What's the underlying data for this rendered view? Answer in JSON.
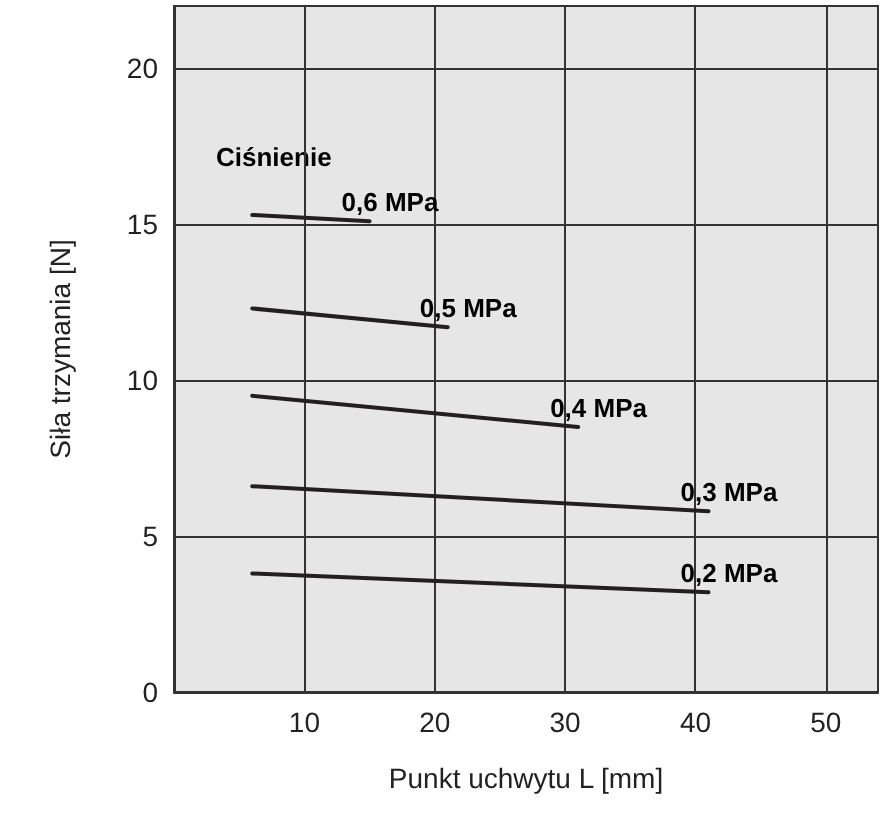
{
  "chart_data": {
    "type": "line",
    "xlabel": "Punkt uchwytu L [mm]",
    "ylabel": "Siła trzymania [N]",
    "annotations": [
      "Ciśnienie"
    ],
    "xlim": [
      0,
      54
    ],
    "xticks": [
      10,
      20,
      30,
      40,
      50
    ],
    "ylim": [
      0,
      22
    ],
    "yticks": [
      0,
      5,
      10,
      15,
      20
    ],
    "grid": true,
    "legend": false,
    "marker": "none",
    "line_style": "solid",
    "series": [
      {
        "name": "0,6 MPa",
        "color": "#231f20",
        "x": [
          6,
          15
        ],
        "values": [
          15.3,
          15.1
        ]
      },
      {
        "name": "0,5 MPa",
        "color": "#231f20",
        "x": [
          6,
          21
        ],
        "values": [
          12.3,
          11.7
        ]
      },
      {
        "name": "0,4 MPa",
        "color": "#231f20",
        "x": [
          6,
          31
        ],
        "values": [
          9.5,
          8.5
        ]
      },
      {
        "name": "0,3 MPa",
        "color": "#231f20",
        "x": [
          6,
          41
        ],
        "values": [
          6.6,
          5.8
        ]
      },
      {
        "name": "0,2 MPa",
        "color": "#231f20",
        "x": [
          6,
          41
        ],
        "values": [
          3.8,
          3.2
        ]
      }
    ]
  }
}
